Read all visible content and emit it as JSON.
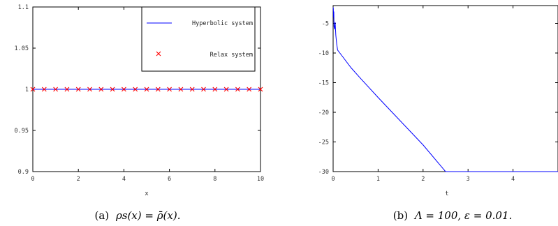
{
  "chart_data": [
    {
      "type": "line",
      "panel": "a",
      "caption_label": "(a)",
      "caption_math": "ρs(x) = ρ̄(x).",
      "xlabel": "x",
      "ylabel": "",
      "xlim": [
        0,
        10
      ],
      "ylim": [
        0.9,
        1.1
      ],
      "xticks": [
        "0",
        "2",
        "4",
        "6",
        "8",
        "10"
      ],
      "yticks": [
        "0.9",
        "0.95",
        "1",
        "1.05",
        "1.1"
      ],
      "grid": false,
      "legend_position": "top-right",
      "series": [
        {
          "name": "Hyperbolic system",
          "style": "line",
          "color": "#0000ff",
          "x": [
            0,
            10
          ],
          "y": [
            1,
            1
          ]
        },
        {
          "name": "Relax system",
          "style": "marker-x",
          "color": "#ff0000",
          "x": [
            0,
            0.5,
            1,
            1.5,
            2,
            2.5,
            3,
            3.5,
            4,
            4.5,
            5,
            5.5,
            6,
            6.5,
            7,
            7.5,
            8,
            8.5,
            9,
            9.5,
            10
          ],
          "y": [
            1,
            1,
            1,
            1,
            1,
            1,
            1,
            1,
            1,
            1,
            1,
            1,
            1,
            1,
            1,
            1,
            1,
            1,
            1,
            1,
            1
          ]
        }
      ]
    },
    {
      "type": "line",
      "panel": "b",
      "caption_label": "(b)",
      "caption_math": "Λ = 100, ε = 0.01.",
      "xlabel": "t",
      "ylabel": "",
      "xlim": [
        0,
        5
      ],
      "ylim": [
        -30,
        -2
      ],
      "xticks": [
        "0",
        "1",
        "2",
        "3",
        "4"
      ],
      "yticks": [
        "-5",
        "-10",
        "-15",
        "-20",
        "-25",
        "-30"
      ],
      "grid": false,
      "series": [
        {
          "color": "#0000ff",
          "x": [
            0,
            0.005,
            0.01,
            0.015,
            0.02,
            0.03,
            0.045,
            0.06,
            0.08,
            0.1,
            0.2,
            0.4,
            0.6,
            1.0,
            1.5,
            2.0,
            2.5,
            3.0,
            3.5,
            4.0,
            4.5,
            5.0
          ],
          "y": [
            -2.3,
            -2.5,
            -4.0,
            -3.0,
            -5.5,
            -6.0,
            -4.8,
            -7.0,
            -8.5,
            -9.5,
            -10.5,
            -12.5,
            -14.2,
            -17.5,
            -21.5,
            -25.5,
            -30,
            -30,
            -30,
            -30,
            -30,
            -30
          ]
        }
      ]
    }
  ]
}
